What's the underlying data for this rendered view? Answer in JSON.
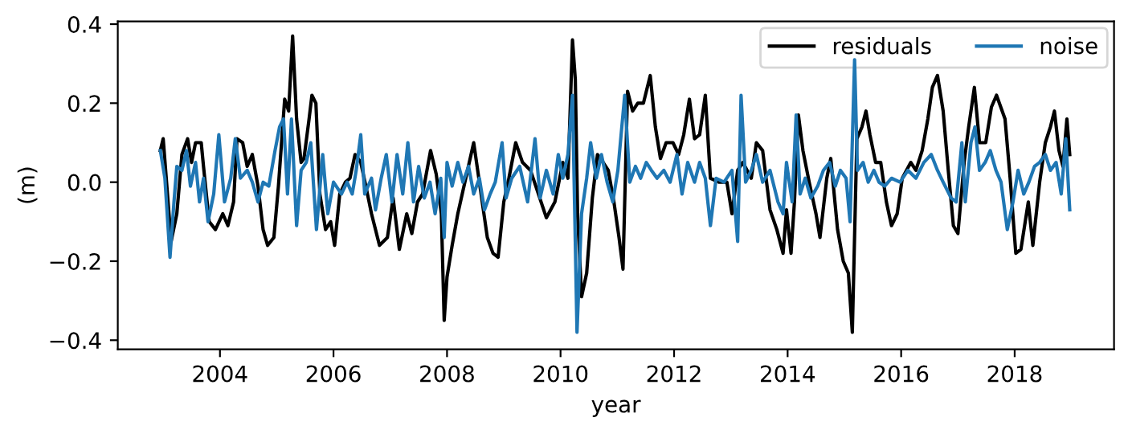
{
  "chart_data": {
    "type": "line",
    "xlabel": "year",
    "ylabel": "(m)",
    "legend": "top right",
    "grid": false,
    "xlim": [
      2002.2,
      2019.75
    ],
    "xticks": [
      2004,
      2006,
      2008,
      2010,
      2012,
      2014,
      2016,
      2018
    ],
    "ylim": [
      -0.423,
      0.407
    ],
    "yticks": [
      {
        "value": -0.4,
        "label": "−0.4"
      },
      {
        "value": -0.2,
        "label": "−0.2"
      },
      {
        "value": 0,
        "label": "0.0"
      },
      {
        "value": 0.2,
        "label": "0.2"
      },
      {
        "value": 0.4,
        "label": "0.4"
      }
    ],
    "series": [
      {
        "name": "residuals",
        "color": "#000000",
        "x": [
          2002.95,
          2003.0,
          2003.14,
          2003.24,
          2003.33,
          2003.43,
          2003.5,
          2003.57,
          2003.67,
          2003.71,
          2003.81,
          2003.92,
          2004.05,
          2004.14,
          2004.24,
          2004.3,
          2004.4,
          2004.48,
          2004.57,
          2004.67,
          2004.76,
          2004.84,
          2004.95,
          2005.03,
          2005.14,
          2005.21,
          2005.28,
          2005.35,
          2005.43,
          2005.48,
          2005.57,
          2005.62,
          2005.69,
          2005.76,
          2005.86,
          2005.95,
          2006.02,
          2006.11,
          2006.21,
          2006.29,
          2006.38,
          2006.48,
          2006.57,
          2006.67,
          2006.81,
          2006.95,
          2007.05,
          2007.16,
          2007.29,
          2007.38,
          2007.48,
          2007.57,
          2007.71,
          2007.81,
          2007.9,
          2007.95,
          2008.0,
          2008.09,
          2008.19,
          2008.33,
          2008.47,
          2008.57,
          2008.71,
          2008.81,
          2008.9,
          2009.0,
          2009.09,
          2009.21,
          2009.33,
          2009.47,
          2009.61,
          2009.75,
          2009.9,
          2010.04,
          2010.13,
          2010.21,
          2010.26,
          2010.3,
          2010.37,
          2010.46,
          2010.56,
          2010.65,
          2010.75,
          2010.84,
          2010.94,
          2011.03,
          2011.1,
          2011.18,
          2011.27,
          2011.36,
          2011.46,
          2011.58,
          2011.67,
          2011.76,
          2011.86,
          2011.98,
          2012.08,
          2012.17,
          2012.27,
          2012.36,
          2012.45,
          2012.55,
          2012.64,
          2012.79,
          2012.93,
          2013.02,
          2013.12,
          2013.21,
          2013.36,
          2013.45,
          2013.56,
          2013.69,
          2013.81,
          2013.92,
          2013.98,
          2014.06,
          2014.12,
          2014.19,
          2014.27,
          2014.38,
          2014.5,
          2014.57,
          2014.69,
          2014.76,
          2014.88,
          2014.98,
          2015.07,
          2015.14,
          2015.22,
          2015.31,
          2015.38,
          2015.45,
          2015.55,
          2015.64,
          2015.74,
          2015.83,
          2015.93,
          2016.02,
          2016.17,
          2016.26,
          2016.37,
          2016.47,
          2016.55,
          2016.64,
          2016.74,
          2016.83,
          2016.92,
          2017.0,
          2017.11,
          2017.19,
          2017.29,
          2017.38,
          2017.49,
          2017.59,
          2017.68,
          2017.83,
          2017.92,
          2018.02,
          2018.11,
          2018.24,
          2018.32,
          2018.44,
          2018.54,
          2018.63,
          2018.7,
          2018.78,
          2018.85,
          2018.92,
          2018.97
        ],
        "values": [
          0.08,
          0.11,
          -0.15,
          -0.08,
          0.07,
          0.11,
          0.05,
          0.1,
          0.1,
          0.04,
          -0.1,
          -0.12,
          -0.08,
          -0.11,
          -0.05,
          0.11,
          0.1,
          0.04,
          0.07,
          -0.01,
          -0.12,
          -0.16,
          -0.14,
          -0.01,
          0.21,
          0.18,
          0.37,
          0.16,
          0.05,
          0.06,
          0.16,
          0.22,
          0.2,
          -0.03,
          -0.12,
          -0.1,
          -0.16,
          -0.03,
          0.0,
          0.01,
          0.07,
          0.05,
          -0.01,
          -0.08,
          -0.16,
          -0.14,
          -0.04,
          -0.17,
          -0.08,
          -0.13,
          -0.05,
          -0.03,
          0.08,
          0.02,
          -0.08,
          -0.35,
          -0.24,
          -0.16,
          -0.08,
          0.01,
          0.1,
          0.0,
          -0.14,
          -0.18,
          -0.19,
          -0.05,
          0.01,
          0.1,
          0.05,
          0.03,
          -0.03,
          -0.09,
          -0.05,
          0.05,
          0.01,
          0.36,
          0.26,
          -0.08,
          -0.29,
          -0.23,
          -0.04,
          0.07,
          0.05,
          0.03,
          -0.05,
          -0.14,
          -0.22,
          0.23,
          0.18,
          0.2,
          0.2,
          0.27,
          0.14,
          0.06,
          0.1,
          0.1,
          0.07,
          0.12,
          0.21,
          0.11,
          0.12,
          0.22,
          0.01,
          0.0,
          0.0,
          -0.08,
          0.03,
          0.05,
          0.01,
          0.1,
          0.08,
          -0.07,
          -0.12,
          -0.18,
          -0.07,
          -0.18,
          -0.05,
          0.17,
          0.08,
          0.0,
          -0.08,
          -0.14,
          0.01,
          0.06,
          -0.12,
          -0.2,
          -0.23,
          -0.38,
          0.11,
          0.14,
          0.18,
          0.12,
          0.05,
          0.05,
          -0.05,
          -0.11,
          -0.08,
          0.01,
          0.05,
          0.03,
          0.08,
          0.16,
          0.24,
          0.27,
          0.18,
          0.03,
          -0.11,
          -0.13,
          0.05,
          0.14,
          0.24,
          0.1,
          0.1,
          0.19,
          0.22,
          0.16,
          0.01,
          -0.18,
          -0.17,
          -0.05,
          -0.16,
          0.0,
          0.1,
          0.14,
          0.18,
          0.08,
          0.04,
          0.16,
          0.07
        ]
      },
      {
        "name": "noise",
        "color": "#1f77b4",
        "x": [
          2002.95,
          2003.03,
          2003.12,
          2003.19,
          2003.24,
          2003.33,
          2003.41,
          2003.48,
          2003.57,
          2003.64,
          2003.71,
          2003.79,
          2003.89,
          2003.98,
          2004.08,
          2004.19,
          2004.27,
          2004.36,
          2004.48,
          2004.57,
          2004.67,
          2004.76,
          2004.86,
          2004.97,
          2005.05,
          2005.12,
          2005.19,
          2005.26,
          2005.35,
          2005.43,
          2005.52,
          2005.6,
          2005.7,
          2005.81,
          2005.9,
          2006.0,
          2006.14,
          2006.24,
          2006.33,
          2006.4,
          2006.48,
          2006.55,
          2006.67,
          2006.74,
          2006.84,
          2006.93,
          2007.03,
          2007.12,
          2007.22,
          2007.31,
          2007.41,
          2007.5,
          2007.6,
          2007.7,
          2007.79,
          2007.89,
          2007.95,
          2008.0,
          2008.09,
          2008.19,
          2008.28,
          2008.38,
          2008.47,
          2008.57,
          2008.66,
          2008.76,
          2008.85,
          2008.97,
          2009.04,
          2009.14,
          2009.28,
          2009.42,
          2009.55,
          2009.64,
          2009.75,
          2009.87,
          2009.96,
          2010.04,
          2010.13,
          2010.21,
          2010.29,
          2010.37,
          2010.46,
          2010.53,
          2010.63,
          2010.72,
          2010.82,
          2010.92,
          2011.01,
          2011.13,
          2011.22,
          2011.32,
          2011.41,
          2011.51,
          2011.6,
          2011.7,
          2011.82,
          2011.93,
          2012.05,
          2012.14,
          2012.24,
          2012.36,
          2012.45,
          2012.55,
          2012.64,
          2012.74,
          2012.88,
          2013.02,
          2013.12,
          2013.18,
          2013.26,
          2013.36,
          2013.45,
          2013.56,
          2013.69,
          2013.83,
          2013.92,
          2013.98,
          2014.08,
          2014.15,
          2014.22,
          2014.31,
          2014.41,
          2014.53,
          2014.63,
          2014.74,
          2014.84,
          2014.93,
          2015.03,
          2015.1,
          2015.18,
          2015.23,
          2015.33,
          2015.42,
          2015.52,
          2015.61,
          2015.71,
          2015.83,
          2015.98,
          2016.12,
          2016.26,
          2016.4,
          2016.53,
          2016.64,
          2016.74,
          2016.88,
          2016.97,
          2017.07,
          2017.13,
          2017.23,
          2017.3,
          2017.38,
          2017.48,
          2017.57,
          2017.67,
          2017.76,
          2017.87,
          2017.97,
          2018.06,
          2018.16,
          2018.25,
          2018.35,
          2018.44,
          2018.54,
          2018.63,
          2018.73,
          2018.82,
          2018.9,
          2018.97
        ],
        "values": [
          0.08,
          0.01,
          -0.19,
          -0.05,
          0.04,
          0.03,
          0.08,
          -0.01,
          0.05,
          -0.05,
          0.01,
          -0.1,
          -0.03,
          0.12,
          -0.05,
          0.01,
          0.11,
          0.01,
          0.03,
          0.0,
          -0.05,
          0.0,
          -0.01,
          0.08,
          0.14,
          0.16,
          -0.03,
          0.16,
          -0.11,
          0.03,
          0.05,
          0.1,
          -0.12,
          0.07,
          -0.08,
          0.0,
          -0.03,
          0.0,
          -0.03,
          0.03,
          0.12,
          -0.03,
          0.01,
          -0.07,
          0.01,
          0.07,
          -0.05,
          0.07,
          -0.03,
          0.1,
          -0.05,
          0.04,
          -0.04,
          0.0,
          -0.08,
          0.01,
          -0.14,
          0.05,
          -0.01,
          0.05,
          0.0,
          0.04,
          -0.03,
          0.01,
          -0.07,
          -0.03,
          0.0,
          0.1,
          -0.04,
          0.01,
          0.04,
          -0.05,
          0.11,
          -0.04,
          0.03,
          -0.03,
          0.07,
          0.01,
          0.07,
          0.22,
          -0.38,
          -0.08,
          0.01,
          0.1,
          0.01,
          0.07,
          0.0,
          -0.05,
          0.03,
          0.22,
          0.0,
          0.04,
          0.01,
          0.05,
          0.03,
          0.01,
          0.03,
          0.0,
          0.07,
          -0.03,
          0.05,
          0.0,
          0.05,
          0.01,
          -0.11,
          0.01,
          0.0,
          0.03,
          -0.15,
          0.22,
          0.0,
          0.03,
          0.07,
          0.0,
          0.03,
          -0.05,
          -0.08,
          0.05,
          -0.05,
          0.17,
          -0.03,
          0.01,
          -0.04,
          -0.01,
          0.03,
          0.05,
          -0.01,
          0.03,
          0.01,
          -0.1,
          0.31,
          0.03,
          0.05,
          0.0,
          0.03,
          0.0,
          -0.01,
          0.01,
          0.0,
          0.03,
          0.01,
          0.05,
          0.07,
          0.03,
          0.0,
          -0.04,
          -0.05,
          0.1,
          -0.05,
          0.1,
          0.14,
          0.03,
          0.05,
          0.08,
          0.03,
          0.0,
          -0.12,
          -0.05,
          0.03,
          -0.03,
          0.0,
          0.04,
          0.05,
          0.07,
          0.03,
          0.05,
          -0.03,
          0.11,
          -0.07
        ]
      }
    ]
  }
}
